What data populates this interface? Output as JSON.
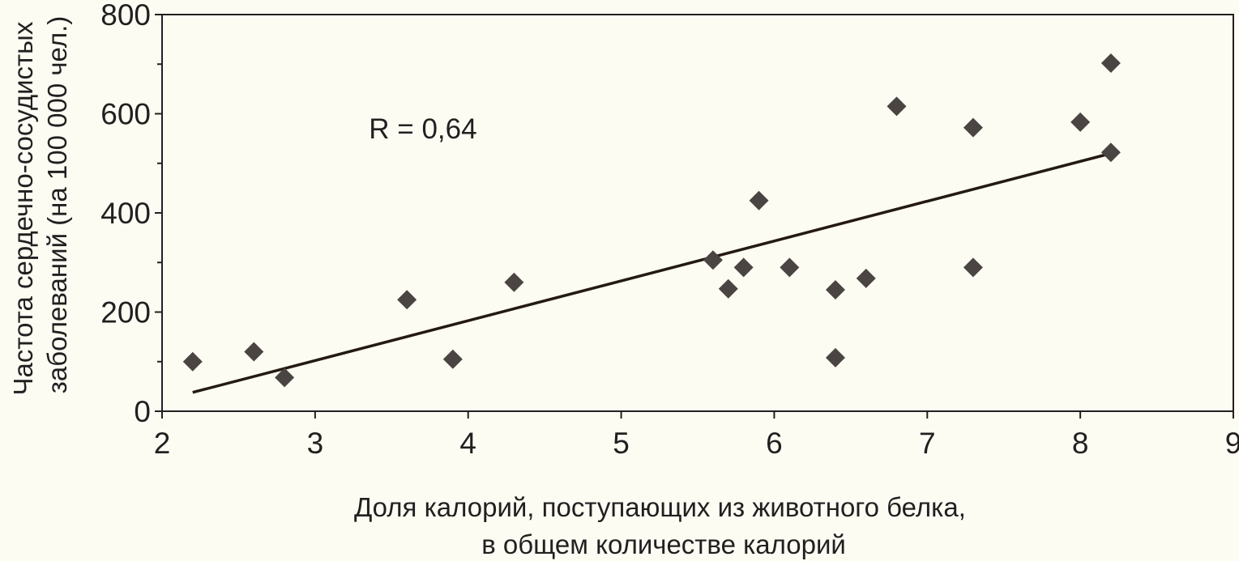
{
  "chart_data": {
    "type": "scatter",
    "title": "",
    "xlabel_lines": [
      "Доля калорий, поступающих из животного белка,",
      "в общем количестве калорий"
    ],
    "ylabel_lines": [
      "Частота сердечно-сосудистых",
      "заболеваний (на 100 000 чел.)"
    ],
    "xlim": [
      2,
      9
    ],
    "ylim": [
      0,
      800
    ],
    "xticks": [
      2,
      3,
      4,
      5,
      6,
      7,
      8,
      9
    ],
    "yticks": [
      0,
      200,
      400,
      600,
      800
    ],
    "ytick_labels": [
      "0",
      "200",
      "400",
      "600",
      "800"
    ],
    "xtick_labels": [
      "2",
      "3",
      "4",
      "5",
      "6",
      "7",
      "8",
      "9"
    ],
    "y_minor_ticks": [
      100,
      300,
      500,
      700
    ],
    "grid": false,
    "annotation": {
      "text": "R = 0,64",
      "x": 3.5,
      "y": 570
    },
    "points": [
      {
        "x": 2.2,
        "y": 100
      },
      {
        "x": 2.6,
        "y": 120
      },
      {
        "x": 2.8,
        "y": 68
      },
      {
        "x": 3.6,
        "y": 225
      },
      {
        "x": 3.9,
        "y": 105
      },
      {
        "x": 4.3,
        "y": 260
      },
      {
        "x": 5.6,
        "y": 305
      },
      {
        "x": 5.7,
        "y": 247
      },
      {
        "x": 5.8,
        "y": 290
      },
      {
        "x": 5.9,
        "y": 425
      },
      {
        "x": 6.1,
        "y": 290
      },
      {
        "x": 6.4,
        "y": 245
      },
      {
        "x": 6.4,
        "y": 108
      },
      {
        "x": 6.6,
        "y": 268
      },
      {
        "x": 6.8,
        "y": 615
      },
      {
        "x": 7.3,
        "y": 572
      },
      {
        "x": 7.3,
        "y": 290
      },
      {
        "x": 8.0,
        "y": 583
      },
      {
        "x": 8.2,
        "y": 702
      },
      {
        "x": 8.2,
        "y": 522
      }
    ],
    "trendline": {
      "x": [
        2.2,
        8.2
      ],
      "y": [
        38,
        520
      ]
    },
    "colors": {
      "marker": "#4a4542",
      "line": "#231a12",
      "axis": "#231f20",
      "text": "#231f20",
      "background": "#fdfcf3"
    }
  }
}
